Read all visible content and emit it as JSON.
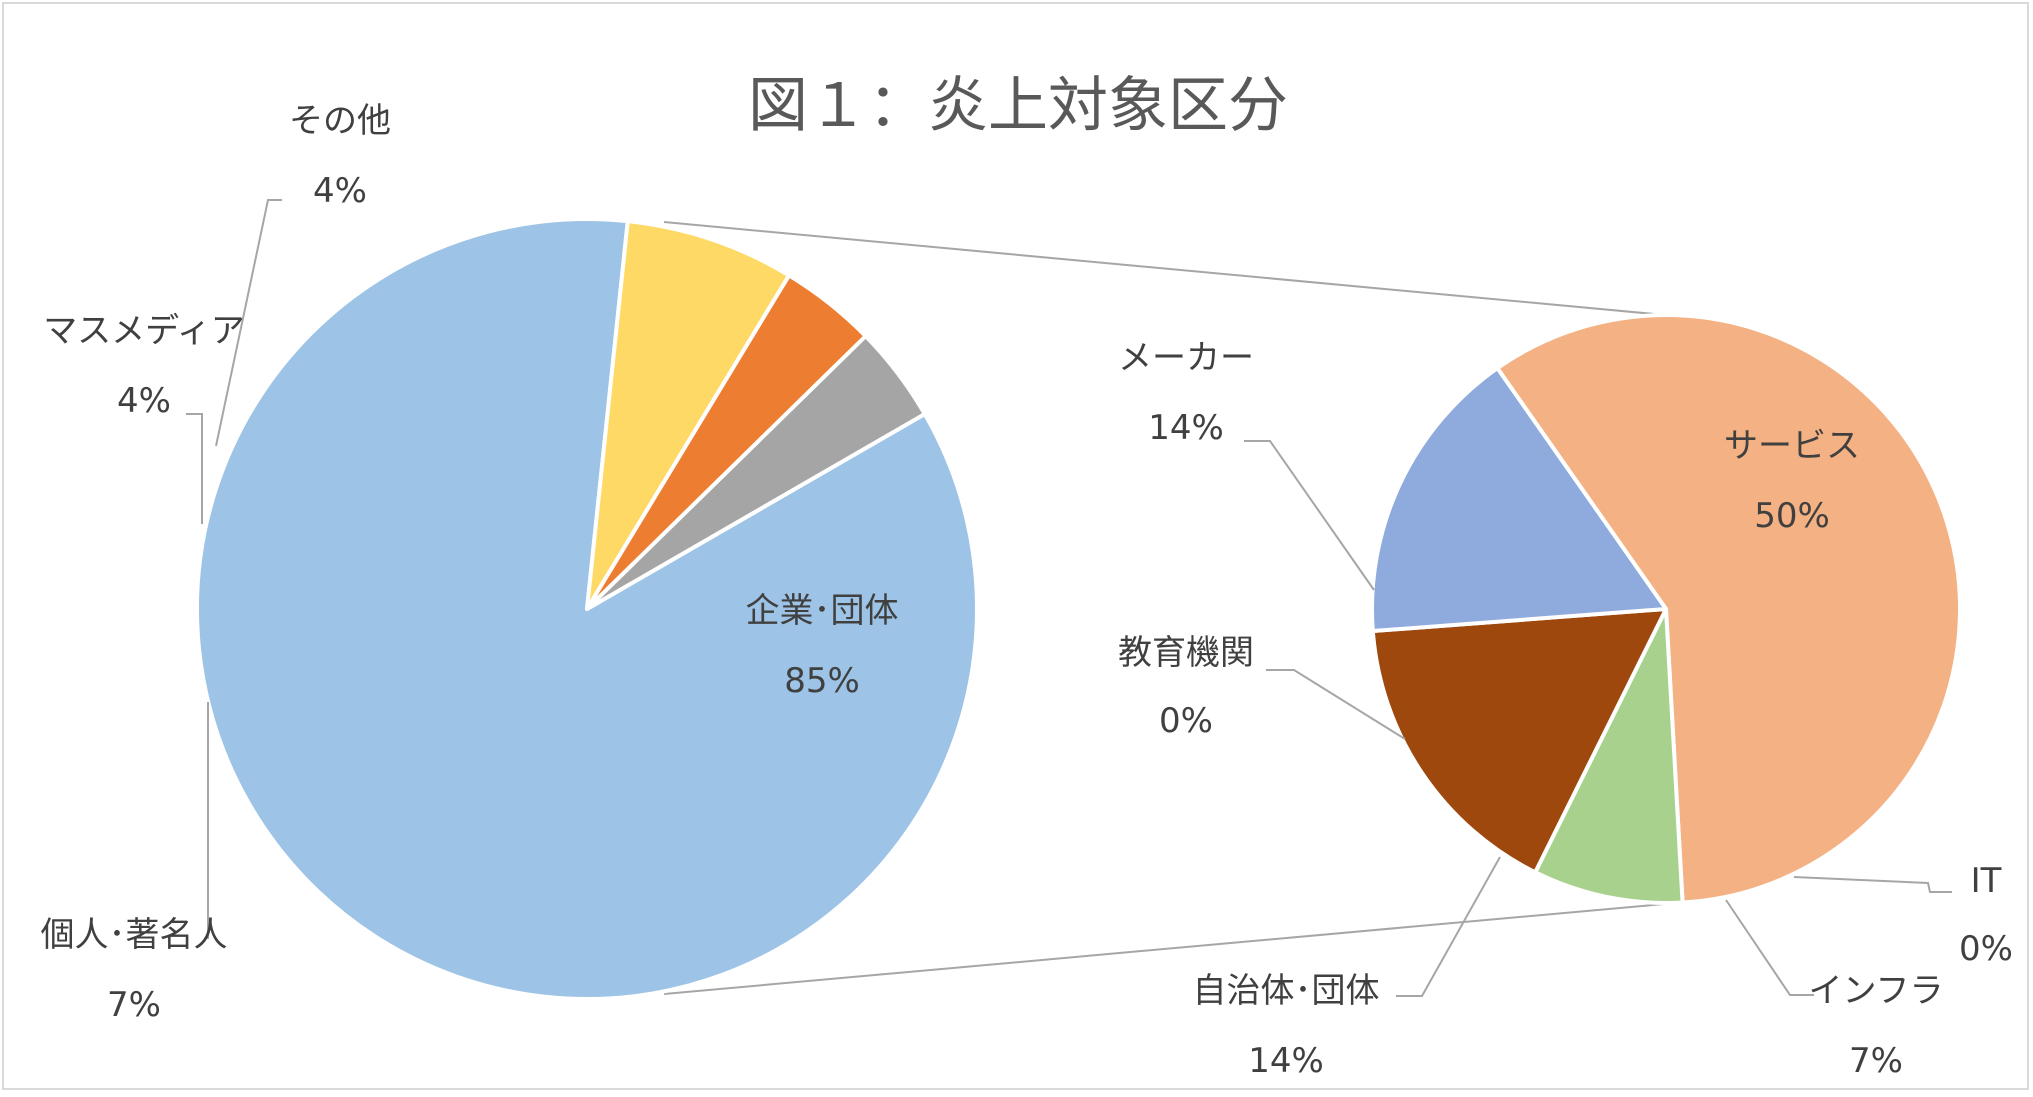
{
  "chart_data": {
    "type": "pie",
    "title": "図１：炎上対象区分",
    "main_pie": {
      "slices": [
        {
          "label": "企業･団体",
          "value": 85,
          "pct_label": "85%",
          "color": "#9dc3e6"
        },
        {
          "label": "個人･著名人",
          "value": 7,
          "pct_label": "7%",
          "color": "#ffd966"
        },
        {
          "label": "マスメディア",
          "value": 4,
          "pct_label": "4%",
          "color": "#ed7d31"
        },
        {
          "label": "その他",
          "value": 4,
          "pct_label": "4%",
          "color": "#a5a5a5"
        }
      ]
    },
    "sub_pie": {
      "parent": "企業･団体",
      "slices": [
        {
          "label": "サービス",
          "value": 50,
          "pct_label": "50%",
          "color": "#f4b183"
        },
        {
          "label": "IT",
          "value": 0,
          "pct_label": "0%",
          "color": "#f4b183"
        },
        {
          "label": "インフラ",
          "value": 7,
          "pct_label": "7%",
          "color": "#a9d18e"
        },
        {
          "label": "自治体･団体",
          "value": 14,
          "pct_label": "14%",
          "color": "#9e480e"
        },
        {
          "label": "教育機関",
          "value": 0,
          "pct_label": "0%",
          "color": "#9e480e"
        },
        {
          "label": "メーカー",
          "value": 14,
          "pct_label": "14%",
          "color": "#8faadc"
        }
      ]
    }
  }
}
